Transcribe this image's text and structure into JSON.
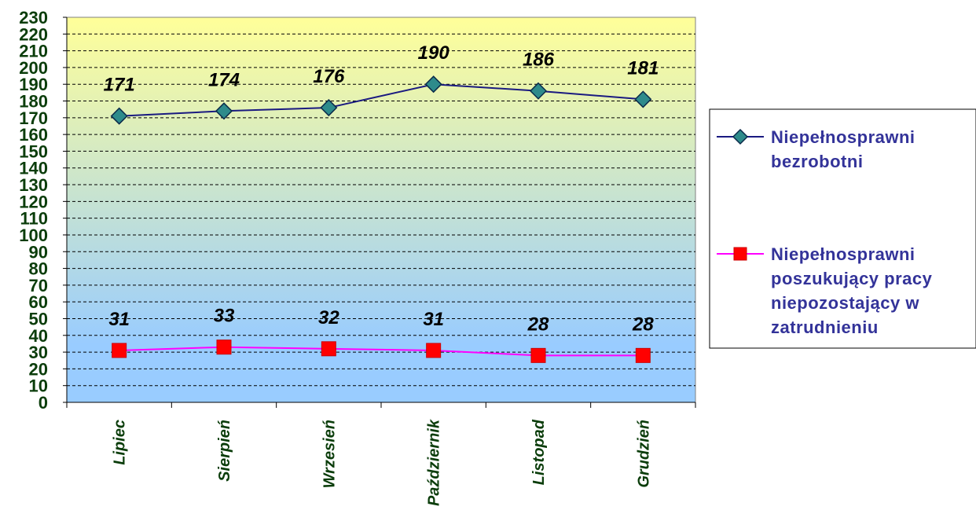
{
  "chart_data": {
    "type": "line",
    "title": "",
    "xlabel": "",
    "ylabel": "",
    "categories": [
      "Lipiec",
      "Sierpień",
      "Wrzesień",
      "Październik",
      "Listopad",
      "Grudzień"
    ],
    "ylim": [
      0,
      230
    ],
    "ytick_step": 10,
    "grid": true,
    "legend_position": "right",
    "series": [
      {
        "name": "Niepełnosprawni bezrobotni",
        "values": [
          171,
          174,
          176,
          190,
          186,
          181
        ],
        "color": "#1a1a80",
        "marker": "diamond",
        "marker_color": "#2e8b8b"
      },
      {
        "name": "Niepełnosprawni poszukujący pracy niepozostający w zatrudnieniu",
        "values": [
          31,
          33,
          32,
          31,
          28,
          28
        ],
        "color": "#ff00ff",
        "marker": "square",
        "marker_color": "#ff0000"
      }
    ],
    "legend_lines": [
      [
        "Niepełnosprawni",
        "bezrobotni"
      ],
      [
        "Niepełnosprawni",
        "poszukujący pracy",
        "niepozostający w",
        "zatrudnieniu"
      ]
    ],
    "colors": {
      "plot_top": "#ffff99",
      "plot_bottom": "#99ccff",
      "axis_text": "#0b3d0b",
      "legend_text": "#333399"
    }
  }
}
